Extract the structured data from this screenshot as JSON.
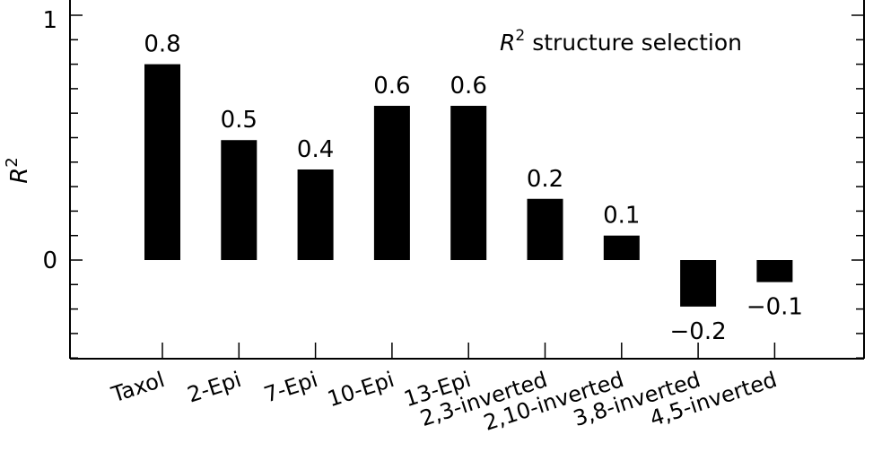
{
  "chart_data": {
    "type": "bar",
    "title": "",
    "legend": {
      "math": "R",
      "superscript": "2",
      "text": "structure selection",
      "position": "top-right"
    },
    "ylabel": {
      "math": "R",
      "superscript": "2"
    },
    "xlabel": "",
    "ylim": [
      -0.4,
      1.0
    ],
    "yticks_labeled": [
      {
        "value": 0,
        "label": "0"
      },
      {
        "value": 1,
        "label": "1"
      }
    ],
    "yticks_minor_step": 0.1,
    "grid": false,
    "bar_color": "#000000",
    "categories": [
      "Taxol",
      "2-Epi",
      "7-Epi",
      "10-Epi",
      "13-Epi",
      "2,3-inverted",
      "2,10-inverted",
      "3,8-inverted",
      "4,5-inverted"
    ],
    "values": [
      0.8,
      0.49,
      0.37,
      0.63,
      0.63,
      0.25,
      0.1,
      -0.19,
      -0.09
    ],
    "value_labels": [
      "0.8",
      "0.5",
      "0.4",
      "0.6",
      "0.6",
      "0.2",
      "0.1",
      "−0.2",
      "−0.1"
    ]
  }
}
